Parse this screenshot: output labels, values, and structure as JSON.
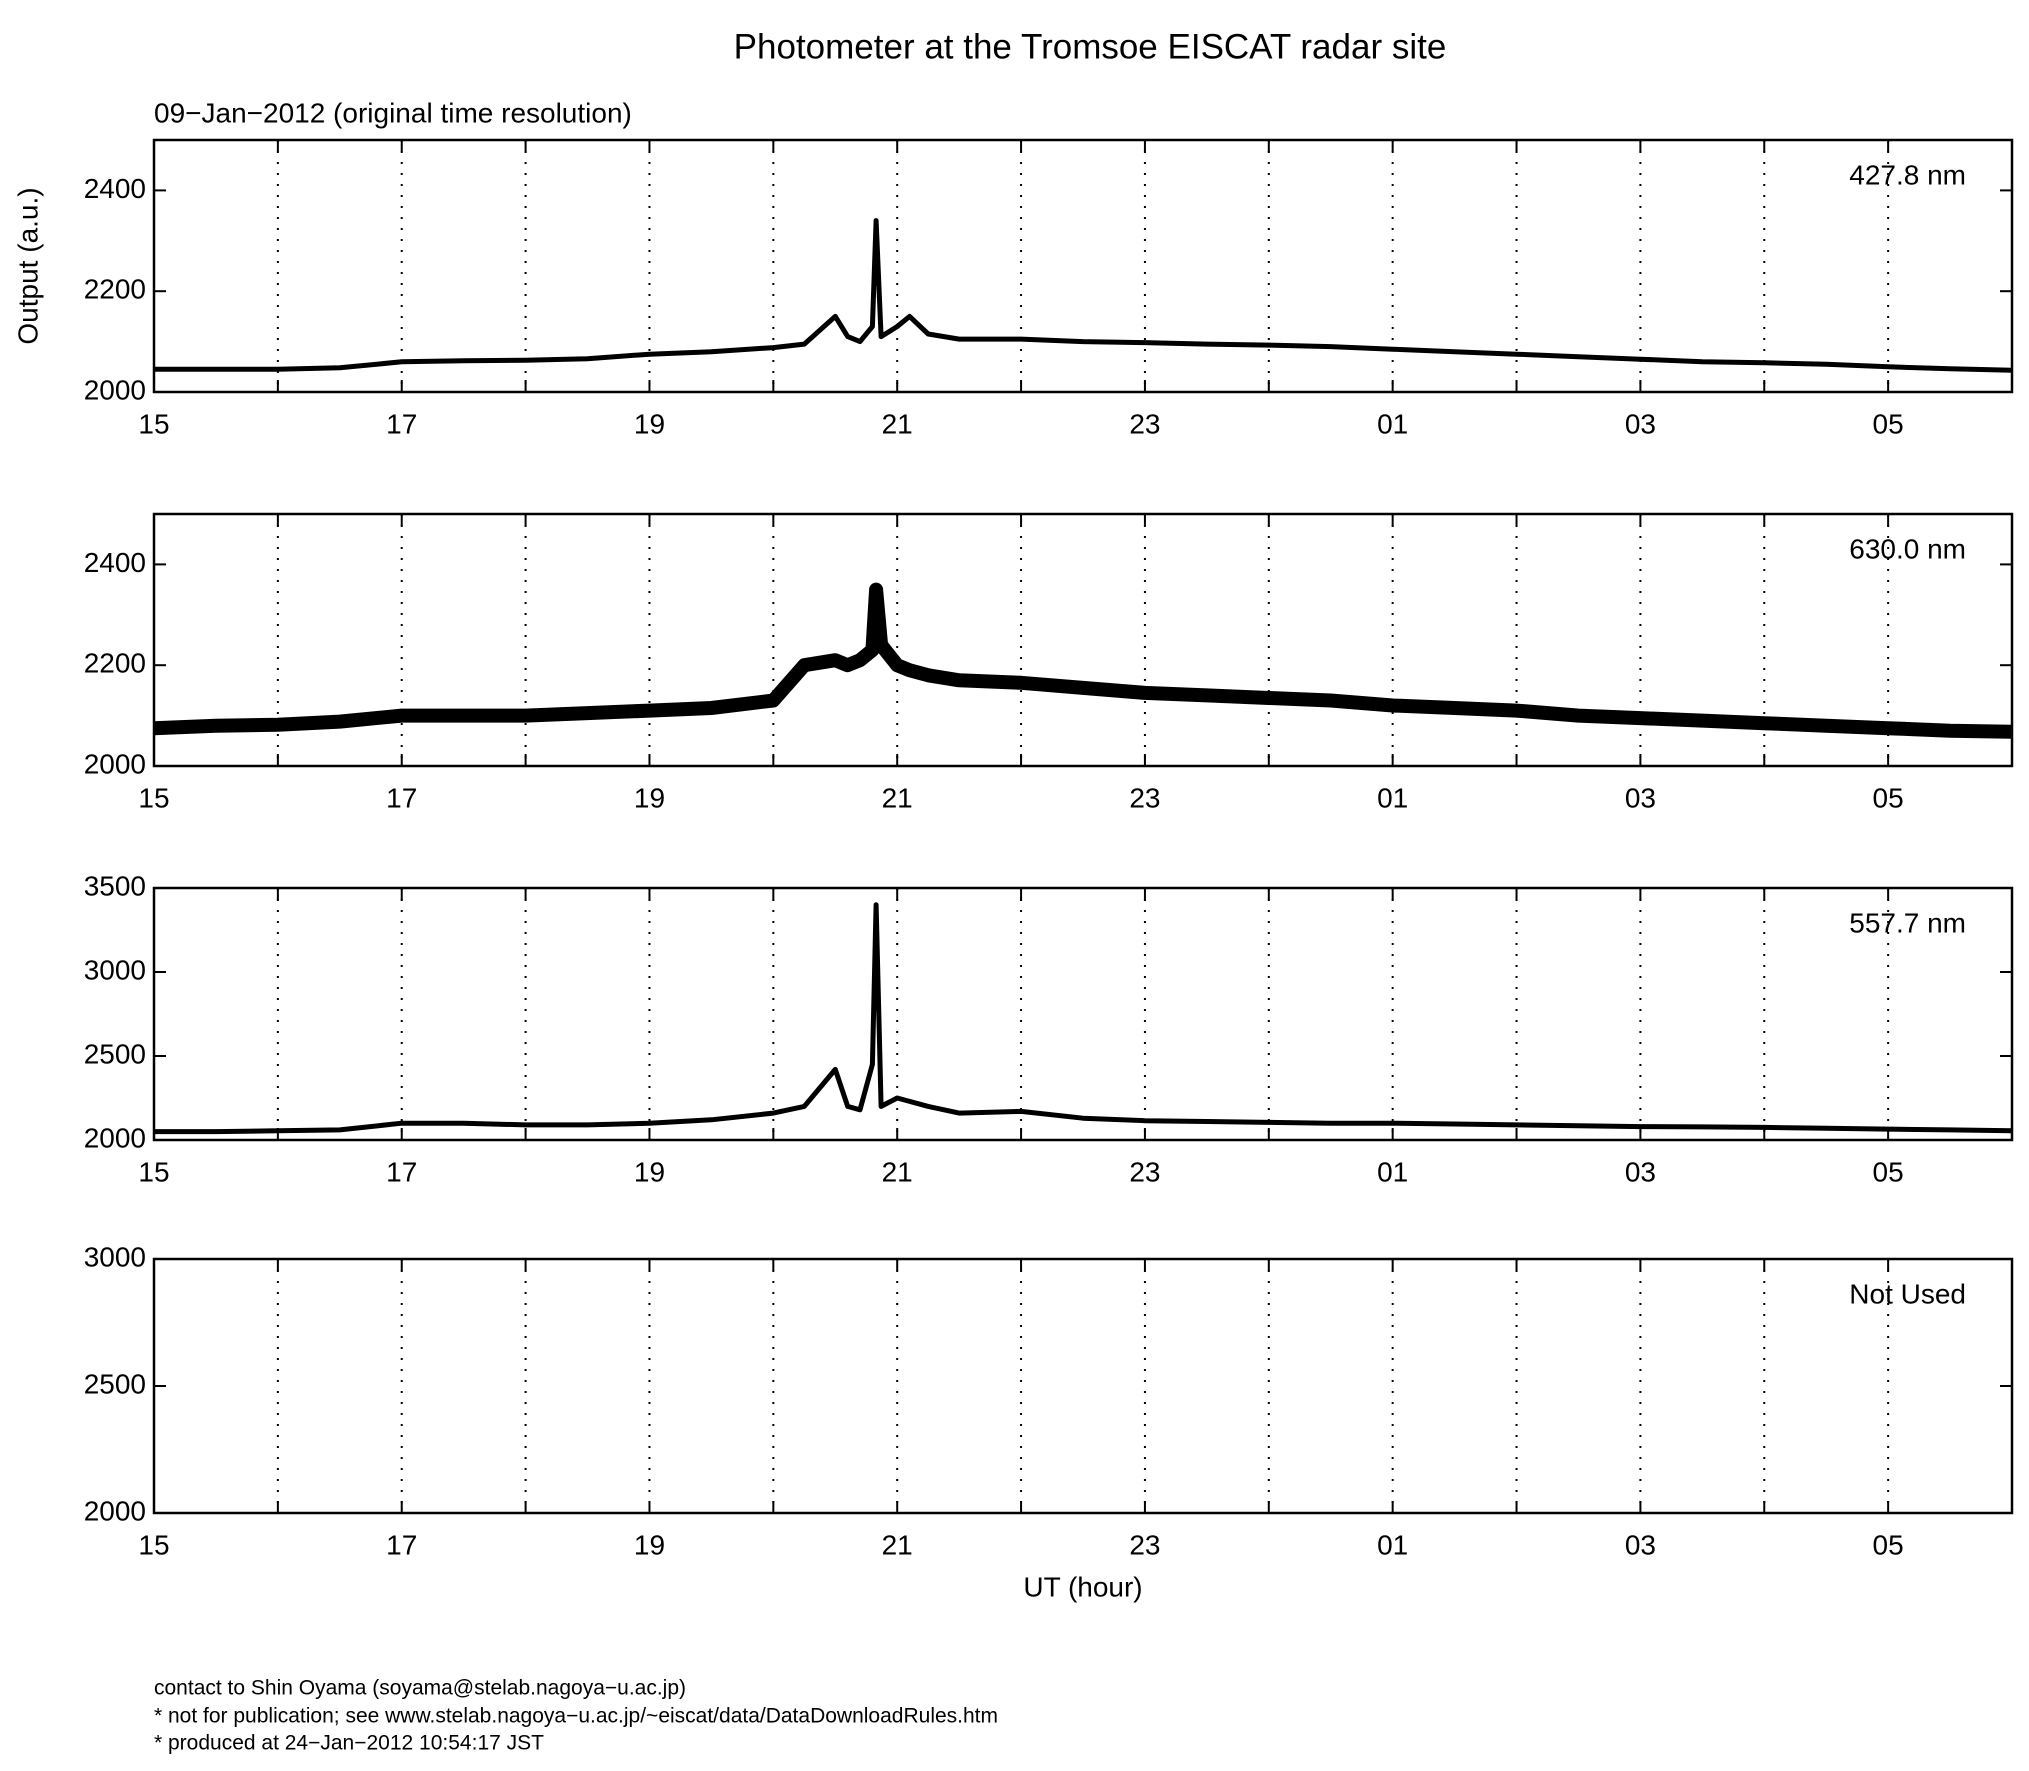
{
  "title": "Photometer at the Tromsoe EISCAT radar site",
  "subtitle": "09−Jan−2012 (original time resolution)",
  "footer": [
    "contact to Shin Oyama (soyama@stelab.nagoya−u.ac.jp)",
    "* not for publication; see www.stelab.nagoya−u.ac.jp/~eiscat/data/DataDownloadRules.htm",
    "* produced at 24−Jan−2012 10:54:17 JST"
  ],
  "chart_data": [
    {
      "type": "line",
      "label": "427.8 nm",
      "ylabel": "Output (a.u.)",
      "color": "#000000",
      "grid": true,
      "xlim": [
        15,
        30
      ],
      "xticks": [
        15,
        17,
        19,
        21,
        23,
        {
          "value": 25,
          "label": "01"
        },
        {
          "value": 27,
          "label": "03"
        },
        {
          "value": 29,
          "label": "05"
        }
      ],
      "x_minor_ticks": [
        16,
        18,
        20,
        22,
        24,
        26,
        28
      ],
      "ylim": [
        2000,
        2500
      ],
      "yticks": [
        2000,
        2200,
        2400
      ],
      "x": [
        15,
        15.5,
        16,
        16.5,
        17,
        17.5,
        18,
        18.5,
        19,
        19.5,
        20,
        20.25,
        20.5,
        20.6,
        20.7,
        20.8,
        20.83,
        20.87,
        21,
        21.1,
        21.25,
        21.5,
        22,
        22.5,
        23,
        23.5,
        24,
        24.5,
        25,
        25.5,
        26,
        26.5,
        27,
        27.5,
        28,
        28.5,
        29,
        29.5,
        30
      ],
      "values": [
        2045,
        2045,
        2045,
        2048,
        2060,
        2062,
        2063,
        2066,
        2075,
        2080,
        2088,
        2095,
        2150,
        2110,
        2100,
        2130,
        2340,
        2110,
        2130,
        2150,
        2115,
        2105,
        2105,
        2100,
        2098,
        2095,
        2093,
        2090,
        2085,
        2080,
        2075,
        2070,
        2065,
        2060,
        2058,
        2055,
        2050,
        2046,
        2043
      ]
    },
    {
      "type": "line",
      "label": "630.0 nm",
      "color": "#000000",
      "grid": true,
      "xlim": [
        15,
        30
      ],
      "xticks": [
        15,
        17,
        19,
        21,
        23,
        {
          "value": 25,
          "label": "01"
        },
        {
          "value": 27,
          "label": "03"
        },
        {
          "value": 29,
          "label": "05"
        }
      ],
      "x_minor_ticks": [
        16,
        18,
        20,
        22,
        24,
        26,
        28
      ],
      "ylim": [
        2000,
        2500
      ],
      "yticks": [
        2000,
        2200,
        2400
      ],
      "x": [
        15,
        15.5,
        16,
        16.5,
        17,
        17.5,
        18,
        18.5,
        19,
        19.5,
        20,
        20.25,
        20.5,
        20.6,
        20.7,
        20.8,
        20.83,
        20.87,
        21,
        21.1,
        21.25,
        21.5,
        22,
        22.5,
        23,
        23.5,
        24,
        24.5,
        25,
        25.5,
        26,
        26.5,
        27,
        27.5,
        28,
        28.5,
        29,
        29.5,
        30
      ],
      "values": [
        2075,
        2080,
        2082,
        2088,
        2100,
        2100,
        2100,
        2105,
        2110,
        2115,
        2130,
        2200,
        2210,
        2200,
        2210,
        2230,
        2350,
        2240,
        2200,
        2190,
        2180,
        2170,
        2165,
        2155,
        2145,
        2140,
        2135,
        2130,
        2120,
        2115,
        2110,
        2100,
        2095,
        2090,
        2085,
        2080,
        2075,
        2070,
        2068
      ]
    },
    {
      "type": "line",
      "label": "557.7 nm",
      "color": "#000000",
      "grid": true,
      "xlim": [
        15,
        30
      ],
      "xticks": [
        15,
        17,
        19,
        21,
        23,
        {
          "value": 25,
          "label": "01"
        },
        {
          "value": 27,
          "label": "03"
        },
        {
          "value": 29,
          "label": "05"
        }
      ],
      "x_minor_ticks": [
        16,
        18,
        20,
        22,
        24,
        26,
        28
      ],
      "ylim": [
        2000,
        3500
      ],
      "yticks": [
        2000,
        2500,
        3000,
        3500
      ],
      "x": [
        15,
        15.5,
        16,
        16.5,
        17,
        17.5,
        18,
        18.5,
        19,
        19.5,
        20,
        20.25,
        20.5,
        20.6,
        20.7,
        20.8,
        20.83,
        20.87,
        21,
        21.1,
        21.25,
        21.5,
        22,
        22.5,
        23,
        23.5,
        24,
        24.5,
        25,
        25.5,
        26,
        26.5,
        27,
        27.5,
        28,
        28.5,
        29,
        29.5,
        30
      ],
      "values": [
        2050,
        2050,
        2055,
        2060,
        2100,
        2100,
        2090,
        2090,
        2100,
        2120,
        2160,
        2200,
        2420,
        2200,
        2180,
        2450,
        3400,
        2200,
        2250,
        2230,
        2200,
        2160,
        2170,
        2130,
        2115,
        2110,
        2105,
        2100,
        2100,
        2095,
        2090,
        2085,
        2080,
        2078,
        2075,
        2070,
        2065,
        2060,
        2055
      ]
    },
    {
      "type": "line",
      "label": "Not Used",
      "xlabel": "UT (hour)",
      "grid": true,
      "xlim": [
        15,
        30
      ],
      "xticks": [
        15,
        17,
        19,
        21,
        23,
        {
          "value": 25,
          "label": "01"
        },
        {
          "value": 27,
          "label": "03"
        },
        {
          "value": 29,
          "label": "05"
        }
      ],
      "x_minor_ticks": [
        16,
        18,
        20,
        22,
        24,
        26,
        28
      ],
      "ylim": [
        2000,
        3000
      ],
      "yticks": [
        2000,
        2500,
        3000
      ]
    }
  ]
}
